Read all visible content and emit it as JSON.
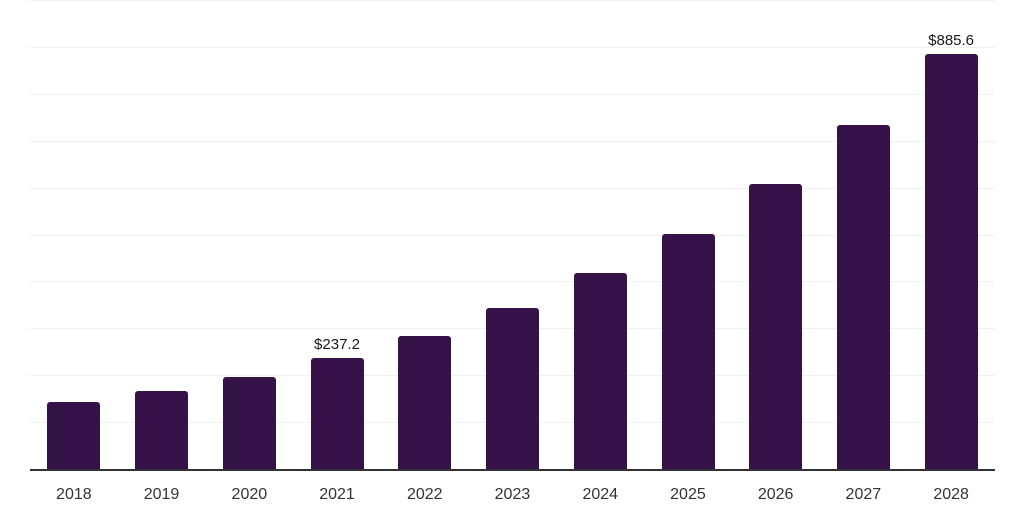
{
  "chart_data": {
    "type": "bar",
    "title": "",
    "xlabel": "",
    "ylabel": "",
    "categories": [
      "2018",
      "2019",
      "2020",
      "2021",
      "2022",
      "2023",
      "2024",
      "2025",
      "2026",
      "2027",
      "2028"
    ],
    "values": [
      142.6,
      166.0,
      195.7,
      237.2,
      283.0,
      343.6,
      417.0,
      500.0,
      608.6,
      734.0,
      885.6
    ],
    "data_labels": {
      "2021": "$237.2",
      "2028": "$885.6"
    },
    "ylim": [
      0,
      1000
    ],
    "grid": {
      "visible": true,
      "interval": 100,
      "color": "#f0f0f0"
    },
    "legend": "none",
    "colors": {
      "bar": "#351349",
      "axis": "#333333",
      "tick_label": "#333333",
      "data_label": "#1a1a1a"
    }
  }
}
